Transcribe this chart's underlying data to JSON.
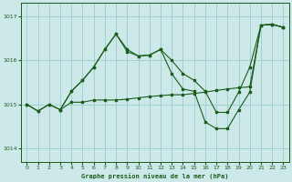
{
  "title": "Graphe pression niveau de la mer (hPa)",
  "bg_color": "#cce8e8",
  "grid_color": "#99cccc",
  "line_color": "#1a5c1a",
  "ylim": [
    1013.7,
    1017.3
  ],
  "yticks": [
    1014,
    1015,
    1016,
    1017
  ],
  "xlim": [
    -0.5,
    23.5
  ],
  "xticks": [
    0,
    1,
    2,
    3,
    4,
    5,
    6,
    7,
    8,
    9,
    10,
    11,
    12,
    13,
    14,
    15,
    16,
    17,
    18,
    19,
    20,
    21,
    22,
    23
  ],
  "series": {
    "s1_x": [
      0,
      1,
      2,
      3,
      4,
      5,
      6,
      7,
      8,
      9,
      10,
      11,
      12,
      13,
      14,
      15,
      16,
      17,
      18,
      19,
      20,
      21,
      22,
      23
    ],
    "s1_y": [
      1015.0,
      1014.85,
      1015.0,
      1014.88,
      1015.05,
      1015.05,
      1015.1,
      1015.1,
      1015.1,
      1015.12,
      1015.15,
      1015.18,
      1015.2,
      1015.22,
      1015.22,
      1015.25,
      1015.28,
      1015.32,
      1015.35,
      1015.38,
      1015.4,
      1016.8,
      1016.82,
      1016.75
    ],
    "s2_x": [
      0,
      1,
      2,
      3,
      4,
      5,
      6,
      7,
      8,
      9,
      10,
      11,
      12,
      13,
      14,
      15,
      16,
      17,
      18,
      19,
      20,
      21,
      22,
      23
    ],
    "s2_y": [
      1015.0,
      1014.85,
      1015.0,
      1014.88,
      1015.3,
      1015.55,
      1015.85,
      1016.25,
      1016.6,
      1016.2,
      1016.1,
      1016.12,
      1016.25,
      1016.0,
      1015.7,
      1015.55,
      1015.3,
      1014.82,
      1014.82,
      1015.28,
      1015.85,
      1016.8,
      1016.82,
      1016.75
    ],
    "s3_x": [
      3,
      4,
      5,
      6,
      7,
      8,
      9,
      10,
      11,
      12,
      13,
      14,
      15,
      16,
      17,
      18,
      19,
      20,
      21,
      22,
      23
    ],
    "s3_y": [
      1014.88,
      1015.3,
      1015.55,
      1015.85,
      1016.25,
      1016.6,
      1016.25,
      1016.1,
      1016.12,
      1016.25,
      1015.7,
      1015.35,
      1015.3,
      1014.6,
      1014.45,
      1014.45,
      1014.88,
      1015.28,
      1016.8,
      1016.82,
      1016.75
    ]
  }
}
